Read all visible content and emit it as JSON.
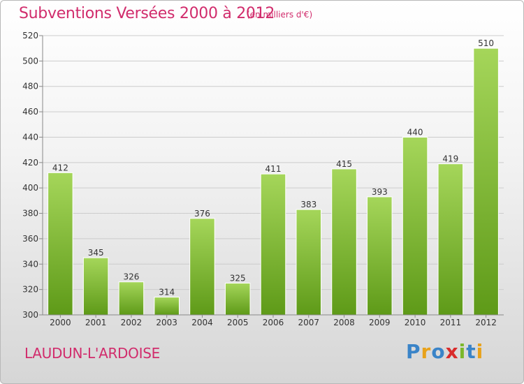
{
  "header": {
    "title": "Subventions Versées 2000 à 2012",
    "subtitle": "(en milliers d'€)"
  },
  "footer": {
    "town": "LAUDUN-L'ARDOISE",
    "brand": "Proxiti",
    "brand_colors": [
      "#3a84c8",
      "#e8a21a",
      "#3a84c8",
      "#d92b2b",
      "#7bb82b",
      "#3a84c8",
      "#e8a21a"
    ]
  },
  "colors": {
    "title": "#d12c6c",
    "bar_top": "#a5d65a",
    "bar_bottom": "#5e9a18",
    "axis": "#888888",
    "grid": "#cccccc"
  },
  "chart_data": {
    "type": "bar",
    "categories": [
      "2000",
      "2001",
      "2002",
      "2003",
      "2004",
      "2005",
      "2006",
      "2007",
      "2008",
      "2009",
      "2010",
      "2011",
      "2012"
    ],
    "values": [
      412,
      345,
      326,
      314,
      376,
      325,
      411,
      383,
      415,
      393,
      440,
      419,
      510
    ],
    "data_labels": [
      "412",
      "345",
      "326",
      "314",
      "376",
      "325",
      "411",
      "383",
      "415",
      "393",
      "440",
      "419",
      "510"
    ],
    "title": "Subventions Versées 2000 à 2012",
    "ylim": [
      300,
      520
    ],
    "yticks": [
      300,
      320,
      340,
      360,
      380,
      400,
      420,
      440,
      460,
      480,
      500,
      520
    ],
    "ytick_labels": [
      "300",
      "320",
      "340",
      "360",
      "380",
      "400",
      "420",
      "440",
      "460",
      "480",
      "500",
      "520"
    ],
    "grid": "horizontal",
    "legend": "none"
  }
}
